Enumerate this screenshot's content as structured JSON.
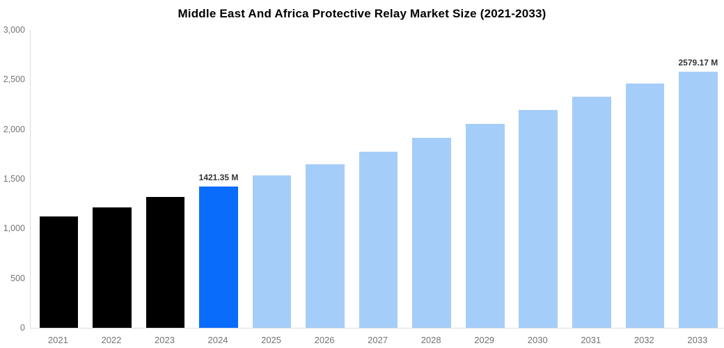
{
  "chart_data": {
    "type": "bar",
    "title": "Middle East And Africa Protective Relay Market Size (2021-2033)",
    "unit": "M",
    "categories": [
      "2021",
      "2022",
      "2023",
      "2024",
      "2025",
      "2026",
      "2027",
      "2028",
      "2029",
      "2030",
      "2031",
      "2032",
      "2033"
    ],
    "values": [
      1120,
      1215,
      1318,
      1421.35,
      1532,
      1645,
      1776,
      1911,
      2052,
      2192,
      2327,
      2460,
      2579.17
    ],
    "bar_colors": [
      "#000000",
      "#000000",
      "#000000",
      "#0a6cfa",
      "#a5cdfa",
      "#a5cdfa",
      "#a5cdfa",
      "#a5cdfa",
      "#a5cdfa",
      "#a5cdfa",
      "#a5cdfa",
      "#a5cdfa",
      "#a5cdfa"
    ],
    "annotations": [
      {
        "index": 3,
        "text": "1421.35 M"
      },
      {
        "index": 12,
        "text": "2579.17 M"
      }
    ],
    "xlabel": "",
    "ylabel": "",
    "ylim": [
      0,
      3000
    ],
    "yticks": [
      {
        "value": 3000,
        "label": "3,000"
      },
      {
        "value": 2500,
        "label": "2,500"
      },
      {
        "value": 2000,
        "label": "2,000"
      },
      {
        "value": 1500,
        "label": "1,500"
      },
      {
        "value": 1000,
        "label": "1,000"
      },
      {
        "value": 500,
        "label": "500"
      },
      {
        "value": 0,
        "label": "0"
      }
    ],
    "grid": false,
    "legend": false
  },
  "colors": {
    "historical_bar": "#000000",
    "current_year_bar": "#0a6cfa",
    "forecast_bar": "#a5cdfa",
    "axis_line": "#dcdcdc",
    "axis_text": "#737373",
    "annotation_text": "#333333",
    "title_text": "#000000",
    "background": "#ffffff"
  }
}
